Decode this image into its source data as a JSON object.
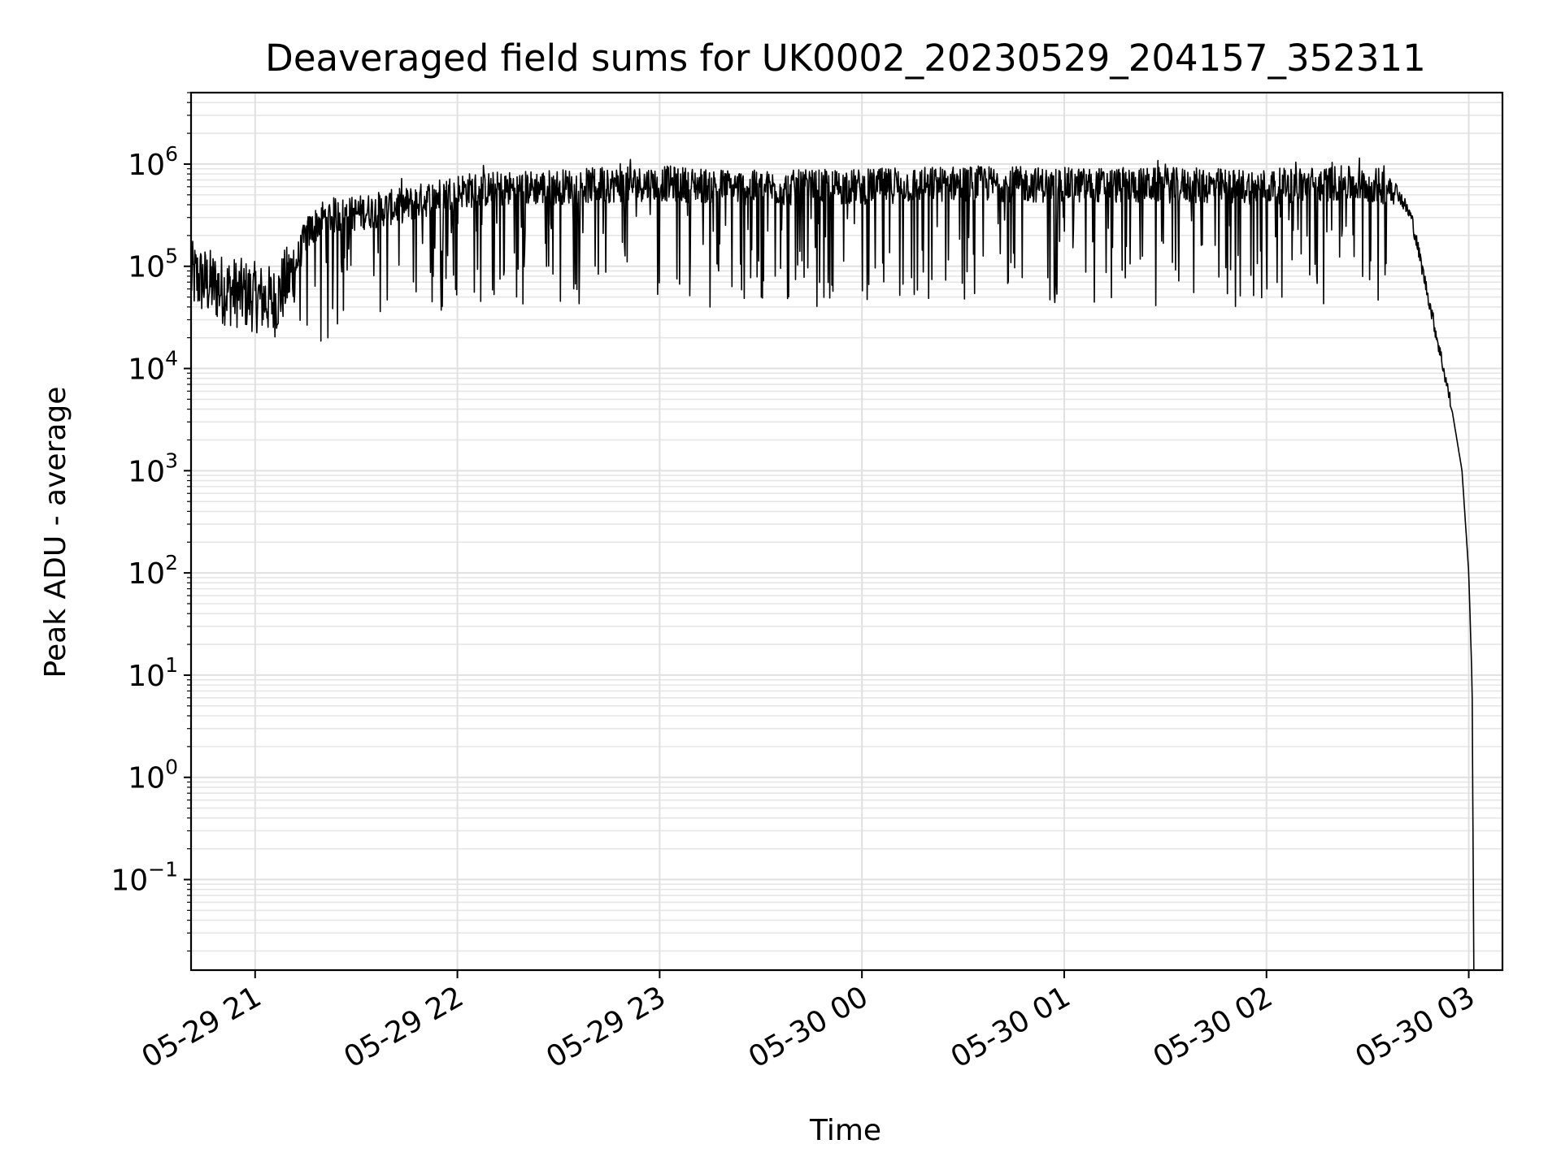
{
  "chart_data": {
    "type": "line",
    "title": "Deaveraged field sums for UK0002_20230529_204157_352311",
    "xlabel": "Time",
    "ylabel": "Peak ADU - average",
    "yscale": "log",
    "grid": "on (major and minor)",
    "legend": "none",
    "line_color": "#000000",
    "x_ticks": [
      "05-29 21",
      "05-29 22",
      "05-29 23",
      "05-30 00",
      "05-30 01",
      "05-30 02",
      "05-30 03"
    ],
    "y_ticks": [
      {
        "base": "10",
        "exp": "6"
      },
      {
        "base": "10",
        "exp": "5"
      },
      {
        "base": "10",
        "exp": "4"
      },
      {
        "base": "10",
        "exp": "3"
      },
      {
        "base": "10",
        "exp": "2"
      },
      {
        "base": "10",
        "exp": "1"
      },
      {
        "base": "10",
        "exp": "0"
      },
      {
        "base": "10",
        "exp": "−1"
      }
    ],
    "xlim": [
      "2023-05-29 20:41",
      "2023-05-30 03:10"
    ],
    "ylim": [
      0.013,
      5000000
    ],
    "series": [
      {
        "x": [
          "2023-05-29 20:41",
          "2023-05-29 20:50",
          "2023-05-29 21:00",
          "2023-05-29 21:06",
          "2023-05-29 21:08",
          "2023-05-29 21:12",
          "2023-05-29 21:15",
          "2023-05-29 21:20",
          "2023-05-29 21:30",
          "2023-05-29 21:45",
          "2023-05-29 22:00",
          "2023-05-29 22:30",
          "2023-05-29 23:00",
          "2023-05-29 23:30",
          "2023-05-30 00:00",
          "2023-05-30 00:30",
          "2023-05-30 01:00",
          "2023-05-30 01:30",
          "2023-05-30 02:00",
          "2023-05-30 02:20",
          "2023-05-30 02:38",
          "2023-05-30 02:43",
          "2023-05-30 02:48",
          "2023-05-30 02:52",
          "2023-05-30 02:55",
          "2023-05-30 02:58",
          "2023-05-30 03:00",
          "2023-05-30 03:01",
          "2023-05-30 03:01:30"
        ],
        "y": [
          80000,
          60000,
          50000,
          45000,
          60000,
          100000,
          200000,
          300000,
          330000,
          400000,
          550000,
          600000,
          650000,
          580000,
          600000,
          650000,
          620000,
          620000,
          600000,
          650000,
          600000,
          300000,
          50000,
          12000,
          4000,
          1000,
          100,
          8,
          0.015
        ]
      }
    ]
  }
}
